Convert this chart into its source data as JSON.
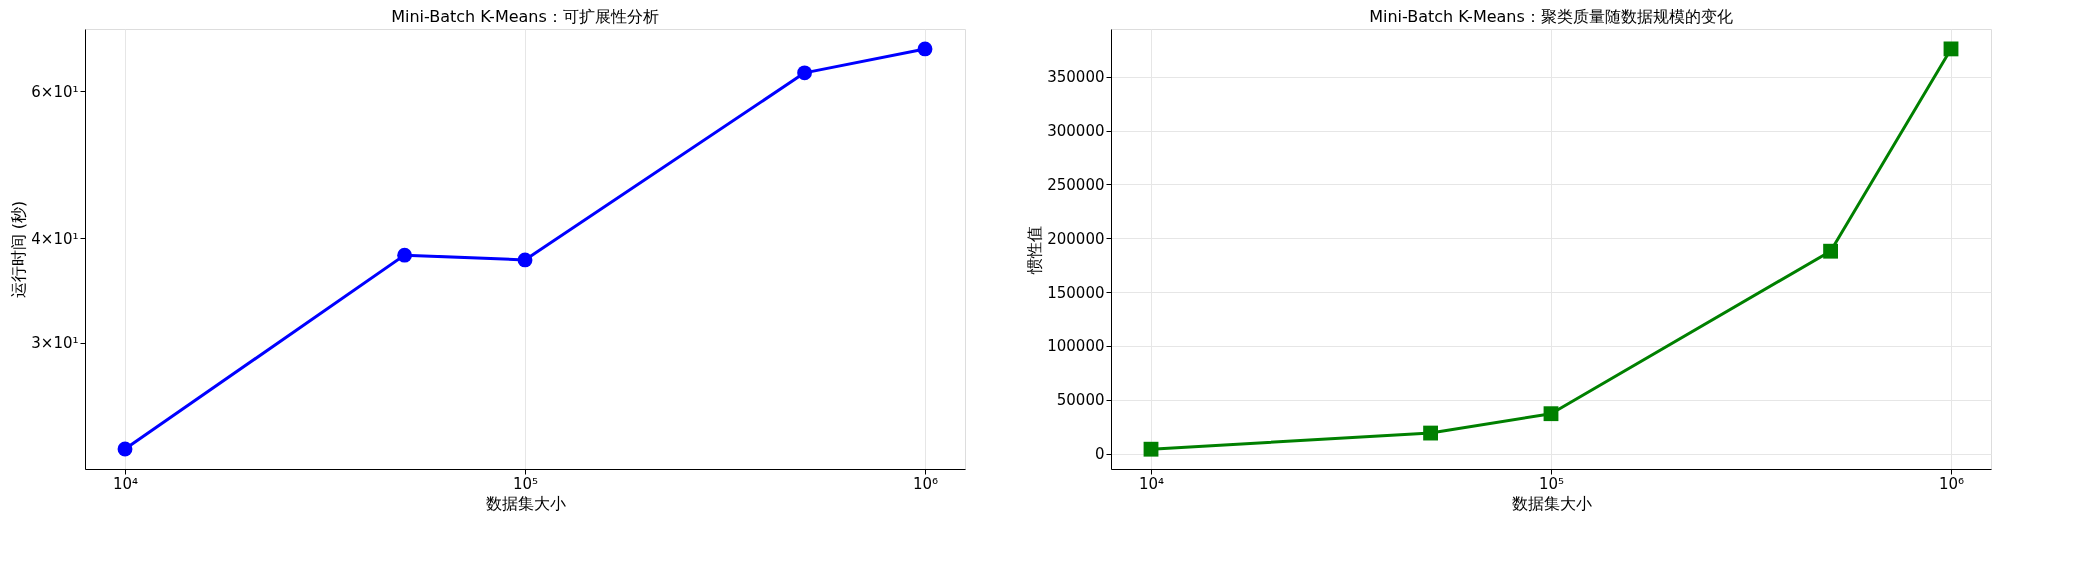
{
  "chart_data": [
    {
      "type": "line",
      "title": "Mini-Batch K-Means：可扩展性分析",
      "xlabel": "数据集大小",
      "ylabel": "运行时间 (秒)",
      "x": [
        10000,
        50000,
        100000,
        500000,
        1000000
      ],
      "log": "xy",
      "grid": "x",
      "marker": "circle",
      "line_style": "solid",
      "series": [
        {
          "color": "#0000ff",
          "values": [
            22.4,
            38.2,
            37.7,
            63.1,
            67.4
          ]
        }
      ],
      "xlim": [
        7943,
        1258925
      ],
      "xticks": [
        {
          "value": 10000,
          "label": "10⁴"
        },
        {
          "value": 100000,
          "label": "10⁵"
        },
        {
          "value": 1000000,
          "label": "10⁶"
        }
      ],
      "ylim": [
        21.2,
        71.2
      ],
      "yticks": [
        {
          "value": 30,
          "label": "3×10¹"
        },
        {
          "value": 40,
          "label": "4×10¹"
        },
        {
          "value": 60,
          "label": "6×10¹"
        }
      ]
    },
    {
      "type": "line",
      "title": "Mini-Batch K-Means：聚类质量随数据规模的变化",
      "xlabel": "数据集大小",
      "ylabel": "惯性值",
      "x": [
        10000,
        50000,
        100000,
        500000,
        1000000
      ],
      "log": "x",
      "grid": true,
      "marker": "square",
      "line_style": "solid",
      "series": [
        {
          "color": "#008000",
          "values": [
            4000,
            19000,
            37000,
            188000,
            376000
          ]
        }
      ],
      "xlim": [
        7943,
        1258925
      ],
      "xticks": [
        {
          "value": 10000,
          "label": "10⁴"
        },
        {
          "value": 100000,
          "label": "10⁵"
        },
        {
          "value": 1000000,
          "label": "10⁶"
        }
      ],
      "ylim": [
        -14400,
        394500
      ],
      "yticks": [
        0,
        50000,
        100000,
        150000,
        200000,
        250000,
        300000,
        350000
      ]
    }
  ]
}
